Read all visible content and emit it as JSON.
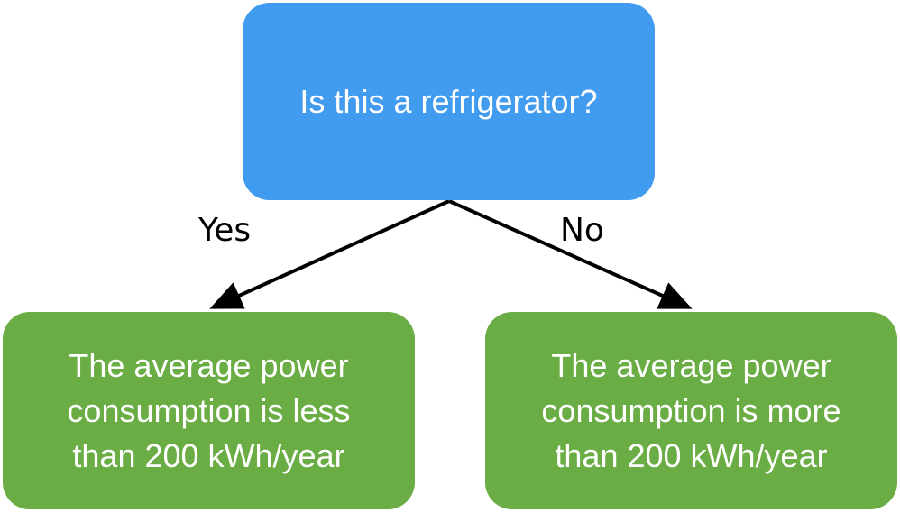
{
  "colors": {
    "question_fill": "#419bef",
    "answer_fill": "#6aad45",
    "arrow": "#000000",
    "node_text": "#ffffff"
  },
  "question": {
    "text": "Is this a refrigerator?"
  },
  "branches": {
    "yes_label": "Yes",
    "no_label": "No"
  },
  "answers": {
    "yes": "The average power\nconsumption is less\nthan 200 kWh/year",
    "no": "The average power\nconsumption is more\nthan 200 kWh/year"
  }
}
